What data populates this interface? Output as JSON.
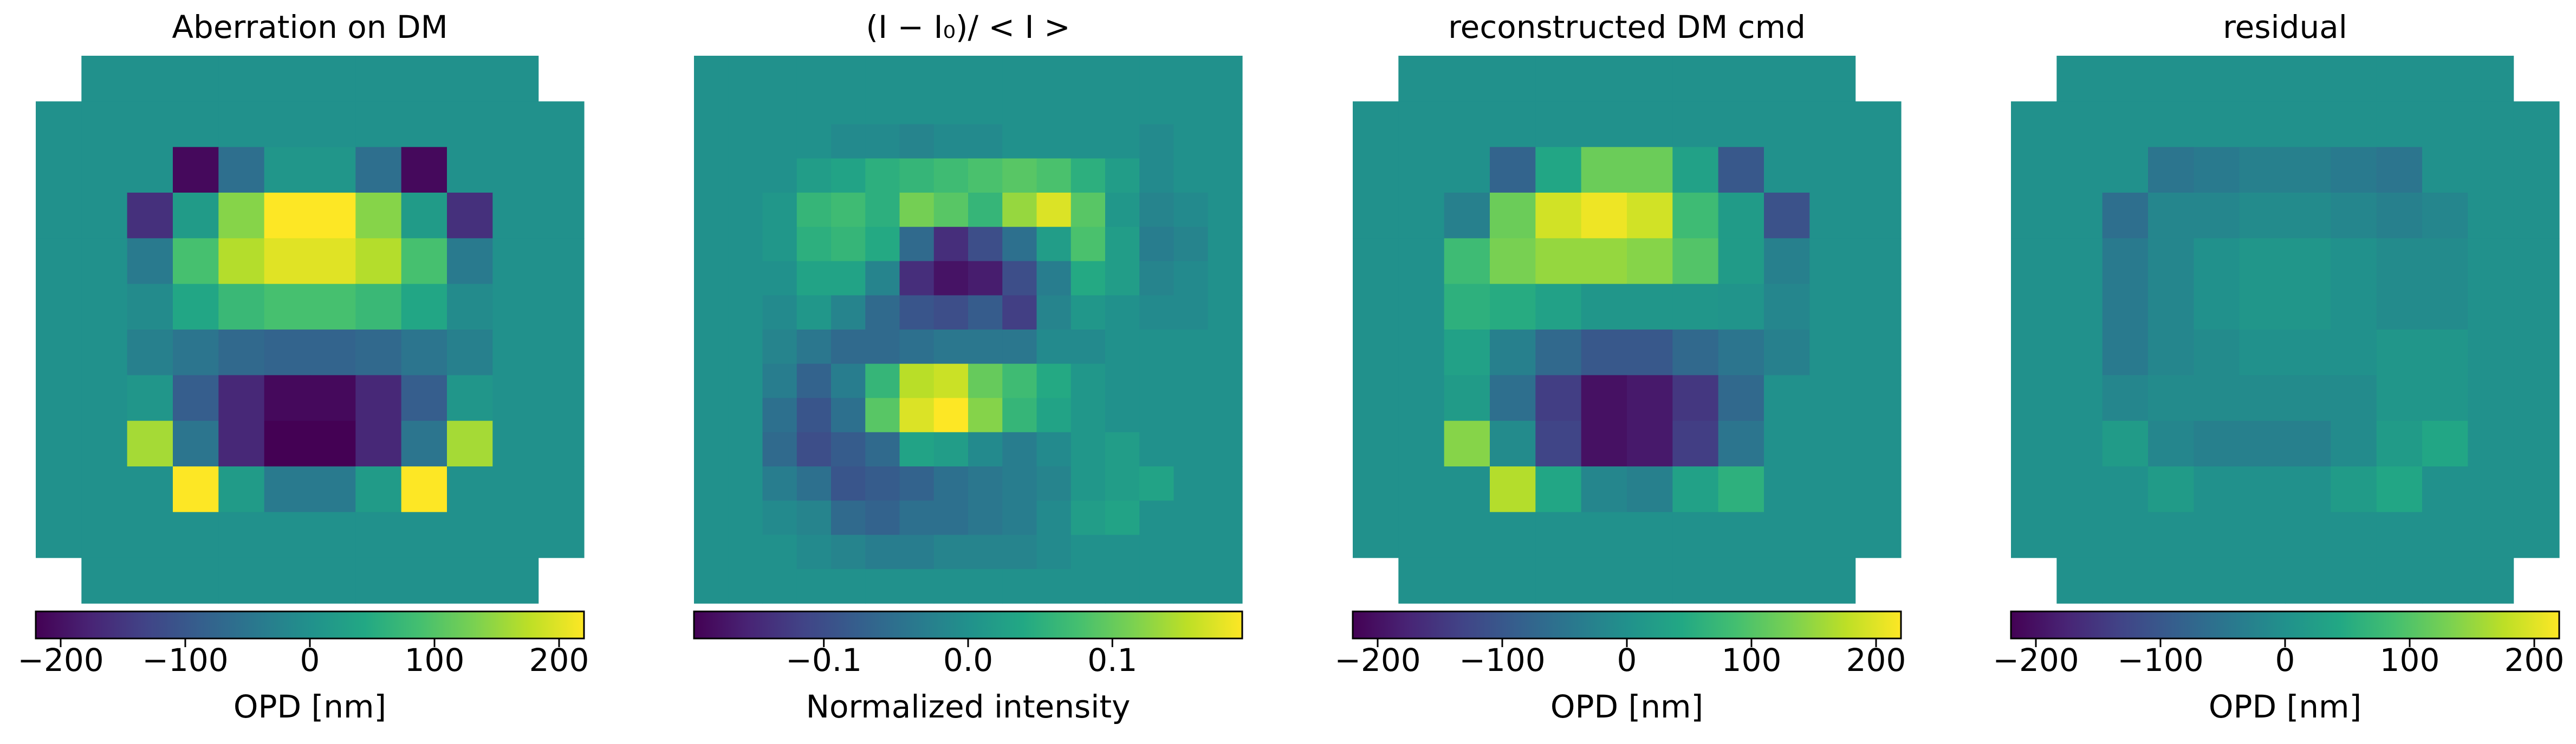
{
  "chart_data": [
    {
      "type": "heatmap",
      "title": "Aberration on DM",
      "colormap": "viridis",
      "grid_shape": [
        12,
        12
      ],
      "clim": [
        -220,
        220
      ],
      "colorbar": {
        "label": "OPD [nm]",
        "ticks": [
          -200,
          -100,
          0,
          100,
          200
        ],
        "tick_labels": [
          "−200",
          "−100",
          "0",
          "100",
          "200"
        ]
      },
      "values": [
        [
          null,
          0,
          0,
          0,
          0,
          0,
          0,
          0,
          0,
          0,
          0,
          null
        ],
        [
          0,
          0,
          0,
          0,
          0,
          0,
          0,
          0,
          0,
          0,
          0,
          0
        ],
        [
          0,
          0,
          0,
          -210,
          -60,
          10,
          10,
          -60,
          -210,
          0,
          0,
          0
        ],
        [
          0,
          0,
          -160,
          20,
          140,
          220,
          220,
          140,
          20,
          -160,
          0,
          0
        ],
        [
          0,
          0,
          -40,
          90,
          170,
          200,
          200,
          170,
          90,
          -40,
          0,
          0
        ],
        [
          0,
          0,
          -10,
          40,
          75,
          90,
          90,
          75,
          40,
          -10,
          0,
          0
        ],
        [
          0,
          0,
          -30,
          -50,
          -70,
          -80,
          -80,
          -70,
          -50,
          -30,
          0,
          0
        ],
        [
          0,
          0,
          10,
          -90,
          -170,
          -210,
          -210,
          -170,
          -90,
          10,
          0,
          0
        ],
        [
          0,
          0,
          160,
          -50,
          -170,
          -220,
          -220,
          -170,
          -50,
          160,
          0,
          0
        ],
        [
          0,
          0,
          0,
          220,
          20,
          -40,
          -40,
          20,
          220,
          0,
          0,
          0
        ],
        [
          0,
          0,
          0,
          0,
          0,
          0,
          0,
          0,
          0,
          0,
          0,
          0
        ],
        [
          null,
          0,
          0,
          0,
          0,
          0,
          0,
          0,
          0,
          0,
          0,
          null
        ]
      ]
    },
    {
      "type": "heatmap",
      "title": "(I − I₀)/ < I >",
      "colormap": "viridis",
      "grid_shape": [
        16,
        16
      ],
      "clim": [
        -0.19,
        0.19
      ],
      "colorbar": {
        "label": "Normalized intensity",
        "ticks": [
          -0.1,
          0.0,
          0.1
        ],
        "tick_labels": [
          "−0.1",
          "0.0",
          "0.1"
        ]
      },
      "values": [
        [
          0,
          0,
          0,
          0,
          0,
          0,
          0,
          0,
          0,
          0,
          0,
          0,
          0,
          0,
          0,
          0
        ],
        [
          0,
          0,
          0,
          0,
          0,
          0,
          0,
          0,
          0,
          0,
          0,
          0,
          0,
          0,
          0,
          0
        ],
        [
          0,
          0,
          0,
          0,
          -0.01,
          -0.01,
          -0.02,
          -0.01,
          -0.01,
          0,
          0,
          0,
          0,
          -0.01,
          0,
          0
        ],
        [
          0,
          0,
          0,
          0.02,
          0.03,
          0.05,
          0.06,
          0.07,
          0.08,
          0.09,
          0.08,
          0.05,
          0.02,
          -0.01,
          0,
          0
        ],
        [
          0,
          0,
          0.01,
          0.06,
          0.07,
          0.05,
          0.11,
          0.09,
          0.06,
          0.13,
          0.17,
          0.09,
          0.01,
          -0.02,
          -0.01,
          0
        ],
        [
          0,
          0,
          0.01,
          0.05,
          0.06,
          0.04,
          -0.06,
          -0.14,
          -0.1,
          -0.05,
          0.02,
          0.08,
          0.02,
          -0.03,
          -0.02,
          0
        ],
        [
          0,
          0,
          0,
          0.03,
          0.03,
          -0.02,
          -0.14,
          -0.17,
          -0.16,
          -0.1,
          -0.03,
          0.04,
          0.02,
          -0.02,
          -0.01,
          0
        ],
        [
          0,
          0,
          -0.01,
          0.01,
          -0.02,
          -0.06,
          -0.09,
          -0.1,
          -0.08,
          -0.12,
          -0.02,
          0.01,
          0,
          -0.01,
          -0.01,
          0
        ],
        [
          0,
          0,
          -0.02,
          -0.04,
          -0.06,
          -0.06,
          -0.05,
          -0.04,
          -0.04,
          -0.04,
          -0.01,
          -0.01,
          0,
          0,
          0,
          0
        ],
        [
          0,
          0,
          -0.03,
          -0.07,
          -0.03,
          0.06,
          0.15,
          0.16,
          0.1,
          0.07,
          0.04,
          0.01,
          0,
          0,
          0,
          0
        ],
        [
          0,
          0,
          -0.05,
          -0.09,
          -0.05,
          0.09,
          0.17,
          0.19,
          0.12,
          0.06,
          0.03,
          0.01,
          0,
          0,
          0,
          0
        ],
        [
          0,
          0,
          -0.06,
          -0.1,
          -0.08,
          -0.06,
          0.03,
          0.02,
          -0.01,
          -0.03,
          -0.01,
          0.01,
          0.02,
          0,
          0,
          0
        ],
        [
          0,
          0,
          -0.03,
          -0.05,
          -0.09,
          -0.08,
          -0.07,
          -0.05,
          -0.04,
          -0.03,
          -0.02,
          0.01,
          0.02,
          0.03,
          0,
          0
        ],
        [
          0,
          0,
          -0.01,
          -0.02,
          -0.06,
          -0.07,
          -0.05,
          -0.05,
          -0.04,
          -0.03,
          -0.01,
          0.02,
          0.03,
          0,
          0,
          0
        ],
        [
          0,
          0,
          0,
          -0.01,
          -0.02,
          -0.03,
          -0.03,
          -0.02,
          -0.02,
          -0.02,
          -0.01,
          0,
          0,
          0,
          0,
          0
        ],
        [
          0,
          0,
          0,
          0,
          0,
          0,
          0,
          0,
          0,
          0,
          0,
          0,
          0,
          0,
          0,
          0
        ]
      ]
    },
    {
      "type": "heatmap",
      "title": "reconstructed DM cmd",
      "colormap": "viridis",
      "grid_shape": [
        12,
        12
      ],
      "clim": [
        -220,
        220
      ],
      "colorbar": {
        "label": "OPD [nm]",
        "ticks": [
          -200,
          -100,
          0,
          100,
          200
        ],
        "tick_labels": [
          "−200",
          "−100",
          "0",
          "100",
          "200"
        ]
      },
      "values": [
        [
          null,
          0,
          0,
          0,
          0,
          0,
          0,
          0,
          0,
          0,
          0,
          null
        ],
        [
          0,
          0,
          0,
          0,
          0,
          0,
          0,
          0,
          0,
          0,
          0,
          0
        ],
        [
          0,
          0,
          0,
          -80,
          40,
          120,
          120,
          30,
          -100,
          0,
          0,
          0
        ],
        [
          0,
          0,
          -30,
          120,
          190,
          210,
          190,
          80,
          20,
          -110,
          0,
          0
        ],
        [
          0,
          0,
          80,
          130,
          150,
          150,
          140,
          100,
          20,
          -30,
          0,
          0
        ],
        [
          0,
          0,
          60,
          50,
          30,
          10,
          10,
          10,
          5,
          -20,
          0,
          0
        ],
        [
          0,
          0,
          30,
          -30,
          -70,
          -100,
          -100,
          -70,
          -50,
          -30,
          0,
          0
        ],
        [
          0,
          0,
          20,
          -60,
          -140,
          -200,
          -190,
          -150,
          -70,
          0,
          0,
          0
        ],
        [
          0,
          0,
          140,
          -10,
          -130,
          -200,
          -190,
          -140,
          -50,
          0,
          0,
          0
        ],
        [
          0,
          0,
          0,
          170,
          40,
          -20,
          -30,
          30,
          60,
          0,
          0,
          0
        ],
        [
          0,
          0,
          0,
          0,
          0,
          0,
          0,
          0,
          0,
          0,
          0,
          0
        ],
        [
          null,
          0,
          0,
          0,
          0,
          0,
          0,
          0,
          0,
          0,
          0,
          null
        ]
      ]
    },
    {
      "type": "heatmap",
      "title": "residual",
      "colormap": "viridis",
      "grid_shape": [
        12,
        12
      ],
      "clim": [
        -220,
        220
      ],
      "colorbar": {
        "label": "OPD [nm]",
        "ticks": [
          -200,
          -100,
          0,
          100,
          200
        ],
        "tick_labels": [
          "−200",
          "−100",
          "0",
          "100",
          "200"
        ]
      },
      "values": [
        [
          null,
          0,
          0,
          0,
          0,
          0,
          0,
          0,
          0,
          0,
          0,
          null
        ],
        [
          0,
          0,
          0,
          0,
          0,
          0,
          0,
          0,
          0,
          0,
          0,
          0
        ],
        [
          0,
          0,
          0,
          -50,
          -40,
          -30,
          -30,
          -40,
          -50,
          0,
          0,
          0
        ],
        [
          0,
          0,
          -60,
          -20,
          -20,
          -10,
          -10,
          -20,
          -30,
          -20,
          0,
          0
        ],
        [
          0,
          0,
          -40,
          -20,
          0,
          10,
          10,
          0,
          -10,
          -10,
          0,
          0
        ],
        [
          0,
          0,
          -40,
          -20,
          0,
          10,
          10,
          0,
          -10,
          -10,
          0,
          0
        ],
        [
          0,
          0,
          -40,
          -20,
          -10,
          0,
          0,
          0,
          10,
          10,
          0,
          0
        ],
        [
          0,
          0,
          -20,
          -10,
          -10,
          -10,
          -10,
          -10,
          10,
          10,
          0,
          0
        ],
        [
          0,
          0,
          20,
          -20,
          -30,
          -30,
          -30,
          -10,
          20,
          40,
          0,
          0
        ],
        [
          0,
          0,
          0,
          20,
          0,
          0,
          0,
          20,
          40,
          0,
          0,
          0
        ],
        [
          0,
          0,
          0,
          0,
          0,
          0,
          0,
          0,
          0,
          0,
          0,
          0
        ],
        [
          null,
          0,
          0,
          0,
          0,
          0,
          0,
          0,
          0,
          0,
          0,
          null
        ]
      ]
    }
  ]
}
